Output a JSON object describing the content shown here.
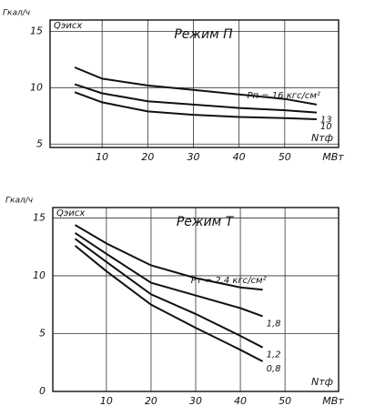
{
  "chart_data": [
    {
      "type": "line",
      "title": "Режим П",
      "y_unit": "Гкал/ч",
      "y_label": "Qэисх",
      "x_label": "Nтф",
      "x_unit": "МВт",
      "x": [
        4,
        10,
        20,
        30,
        40,
        50,
        57
      ],
      "series": [
        {
          "name": "Pп = 16 кгс/см²",
          "color": "#111111",
          "values": [
            11.8,
            10.8,
            10.2,
            9.8,
            9.4,
            9.0,
            8.5
          ]
        },
        {
          "name": "13",
          "color": "#111111",
          "values": [
            10.3,
            9.5,
            8.8,
            8.5,
            8.2,
            8.0,
            7.8
          ]
        },
        {
          "name": "10",
          "color": "#111111",
          "values": [
            9.6,
            8.7,
            7.9,
            7.6,
            7.4,
            7.3,
            7.2
          ]
        }
      ],
      "xlim": [
        -1.4,
        61.8
      ],
      "ylim": [
        4.7,
        16
      ],
      "xticks": [
        10,
        20,
        30,
        40,
        50
      ],
      "yticks": [
        5,
        10,
        15
      ],
      "grid": true
    },
    {
      "type": "line",
      "title": "Режим Т",
      "y_unit": "Гкал/ч",
      "y_label": "Qэисх",
      "x_label": "Nтф",
      "x_unit": "МВт",
      "x": [
        3,
        10,
        20,
        30,
        40,
        45
      ],
      "series": [
        {
          "name": "Pт = 2,4 кгс/см²",
          "color": "#111111",
          "values": [
            14.4,
            12.8,
            10.9,
            9.8,
            9.0,
            8.8
          ]
        },
        {
          "name": "1,8",
          "color": "#111111",
          "values": [
            13.7,
            11.9,
            9.4,
            8.3,
            7.2,
            6.5
          ]
        },
        {
          "name": "1,2",
          "color": "#111111",
          "values": [
            13.2,
            11.2,
            8.4,
            6.7,
            4.8,
            3.8
          ]
        },
        {
          "name": "0,8",
          "color": "#111111",
          "values": [
            12.6,
            10.4,
            7.5,
            5.5,
            3.6,
            2.6
          ]
        }
      ],
      "xlim": [
        -2,
        62
      ],
      "ylim": [
        0,
        15.9
      ],
      "xticks": [
        10,
        20,
        30,
        40,
        50
      ],
      "yticks": [
        0,
        5,
        10,
        15
      ],
      "grid": true
    }
  ]
}
